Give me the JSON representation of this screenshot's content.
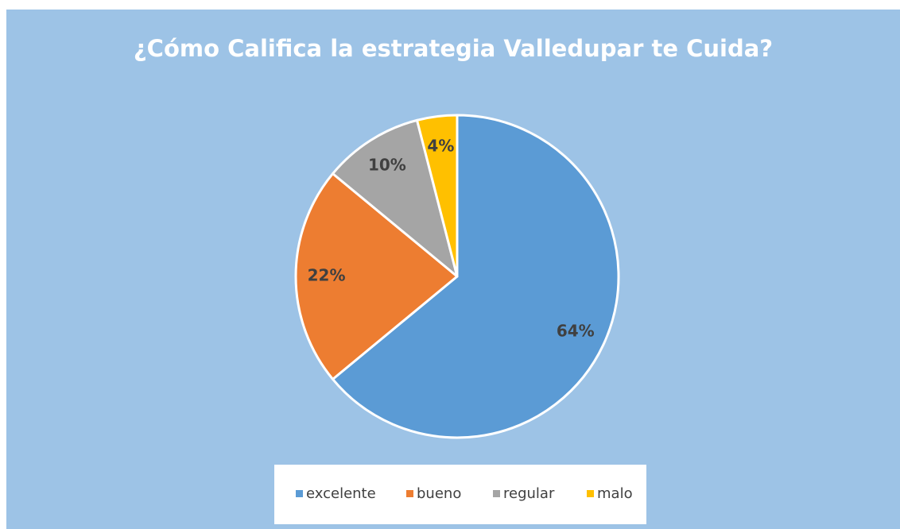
{
  "chart_data": {
    "type": "pie",
    "title": "¿Cómo Califica la estrategia Valledupar te Cuida?",
    "categories": [
      "excelente",
      "bueno",
      "regular",
      "malo"
    ],
    "values": [
      64,
      22,
      10,
      4
    ],
    "value_labels": [
      "64%",
      "22%",
      "10%",
      "4%"
    ],
    "colors": [
      "#5b9bd5",
      "#ed7d31",
      "#a5a5a5",
      "#ffc000"
    ],
    "legend": "bottom"
  }
}
